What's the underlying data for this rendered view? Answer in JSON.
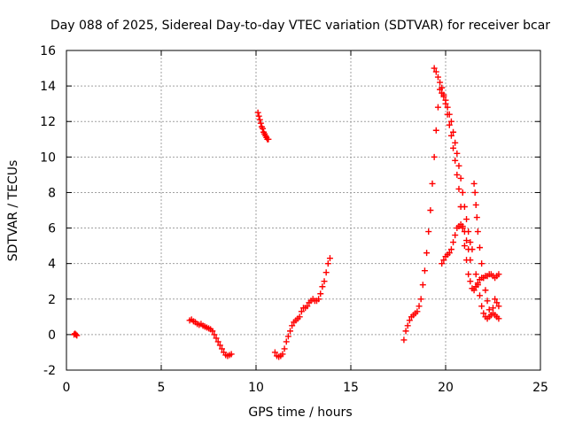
{
  "chart_data": {
    "type": "scatter",
    "title": "Day 088 of 2025, Sidereal Day-to-day VTEC variation (SDTVAR) for receiver bcar",
    "xlabel": "GPS time / hours",
    "ylabel": "SDTVAR / TECUs",
    "xlim": [
      0,
      25
    ],
    "ylim": [
      -2,
      16
    ],
    "xticks": [
      0,
      5,
      10,
      15,
      20,
      25
    ],
    "yticks": [
      -2,
      0,
      2,
      4,
      6,
      8,
      10,
      12,
      14,
      16
    ],
    "grid": true,
    "marker": "+",
    "color": "#ff0000",
    "series": [
      {
        "name": "seg1",
        "x": [
          0.4,
          0.45,
          0.5,
          0.55
        ],
        "y": [
          0.0,
          0.05,
          0.0,
          -0.05
        ]
      },
      {
        "name": "seg2",
        "x": [
          6.5,
          6.6,
          6.7,
          6.8,
          6.9,
          7.0,
          7.1,
          7.2,
          7.3,
          7.4,
          7.5,
          7.6,
          7.7,
          7.8,
          7.9,
          8.0,
          8.1,
          8.2,
          8.3,
          8.4,
          8.5,
          8.6,
          8.7
        ],
        "y": [
          0.8,
          0.85,
          0.75,
          0.7,
          0.6,
          0.55,
          0.6,
          0.5,
          0.45,
          0.4,
          0.35,
          0.3,
          0.2,
          0.0,
          -0.2,
          -0.4,
          -0.6,
          -0.8,
          -1.0,
          -1.15,
          -1.2,
          -1.15,
          -1.1
        ]
      },
      {
        "name": "seg3",
        "x": [
          10.1,
          10.15,
          10.2,
          10.25,
          10.3,
          10.35,
          10.4,
          10.45,
          10.5,
          10.55,
          10.6,
          10.65
        ],
        "y": [
          12.5,
          12.3,
          12.1,
          11.9,
          11.7,
          11.6,
          11.4,
          11.3,
          11.2,
          11.1,
          11.0,
          11.0
        ]
      },
      {
        "name": "seg4",
        "x": [
          11.0,
          11.1,
          11.2,
          11.3,
          11.4,
          11.5,
          11.6,
          11.7,
          11.8,
          11.9,
          12.0,
          12.1,
          12.2,
          12.3,
          12.4,
          12.5,
          12.6,
          12.7,
          12.8,
          12.9,
          13.0,
          13.1,
          13.2,
          13.3,
          13.4,
          13.5,
          13.6,
          13.7,
          13.8,
          13.9
        ],
        "y": [
          -1.0,
          -1.2,
          -1.25,
          -1.2,
          -1.1,
          -0.8,
          -0.4,
          -0.1,
          0.2,
          0.5,
          0.7,
          0.8,
          0.9,
          1.0,
          1.3,
          1.5,
          1.5,
          1.6,
          1.8,
          1.9,
          2.0,
          1.9,
          1.9,
          2.0,
          2.3,
          2.7,
          3.0,
          3.5,
          4.0,
          4.3
        ]
      },
      {
        "name": "seg5",
        "x": [
          17.8,
          17.9,
          18.0,
          18.1,
          18.2,
          18.3,
          18.4,
          18.5,
          18.6,
          18.7,
          18.8,
          18.9,
          19.0,
          19.1,
          19.2,
          19.3,
          19.4,
          19.5,
          19.6,
          19.7,
          19.8,
          19.9,
          20.0,
          20.1,
          20.2,
          20.3,
          20.4,
          20.5,
          20.6,
          20.7,
          20.8,
          20.9,
          21.0,
          21.1,
          21.2,
          21.3,
          21.4,
          21.5,
          21.6,
          21.7,
          21.8,
          21.9,
          22.0,
          22.1,
          22.2,
          22.3,
          22.4,
          22.5,
          22.6,
          22.7,
          22.8
        ],
        "y": [
          -0.3,
          0.2,
          0.5,
          0.8,
          1.0,
          1.1,
          1.2,
          1.3,
          1.6,
          2.0,
          2.8,
          3.6,
          4.6,
          5.8,
          7.0,
          8.5,
          10.0,
          11.5,
          12.8,
          13.8,
          13.6,
          13.4,
          13.0,
          12.4,
          11.8,
          11.2,
          10.5,
          9.8,
          9.0,
          8.2,
          7.2,
          6.0,
          5.0,
          4.2,
          3.4,
          3.0,
          2.6,
          2.5,
          2.7,
          2.9,
          3.1,
          3.2,
          3.2,
          3.3,
          3.3,
          3.4,
          3.4,
          3.3,
          3.2,
          3.3,
          3.4
        ]
      },
      {
        "name": "seg6",
        "x": [
          19.4,
          19.5,
          19.6,
          19.7,
          19.8,
          19.9,
          20.0,
          20.1,
          20.2,
          20.3,
          20.4,
          20.5,
          20.6,
          20.7,
          20.8,
          20.9,
          21.0,
          21.1,
          21.2,
          21.3,
          21.4
        ],
        "y": [
          15.0,
          14.8,
          14.5,
          14.2,
          13.9,
          13.5,
          13.2,
          12.8,
          12.4,
          12.0,
          11.4,
          10.8,
          10.2,
          9.5,
          8.8,
          8.0,
          7.2,
          6.5,
          5.8,
          5.2,
          4.8
        ]
      },
      {
        "name": "seg7",
        "x": [
          19.8,
          19.9,
          20.0,
          20.1,
          20.2,
          20.3,
          20.4,
          20.5,
          20.6,
          20.7,
          20.8,
          20.9,
          21.0,
          21.1,
          21.2,
          21.3
        ],
        "y": [
          4.0,
          4.2,
          4.4,
          4.5,
          4.6,
          4.8,
          5.2,
          5.6,
          6.0,
          6.1,
          6.2,
          6.1,
          5.8,
          5.3,
          4.8,
          4.2
        ]
      },
      {
        "name": "seg8",
        "x": [
          21.5,
          21.55,
          21.6,
          21.65,
          21.7,
          21.8,
          21.9,
          22.0,
          22.1,
          22.2,
          22.3,
          22.4,
          22.5,
          22.6,
          22.7,
          22.8
        ],
        "y": [
          8.5,
          8.0,
          7.3,
          6.6,
          5.8,
          4.9,
          4.0,
          3.2,
          2.5,
          1.9,
          1.4,
          1.1,
          1.5,
          2.0,
          1.8,
          1.6
        ]
      },
      {
        "name": "seg9",
        "x": [
          21.6,
          21.7,
          21.8,
          21.9,
          22.0,
          22.1,
          22.2,
          22.3,
          22.4,
          22.5,
          22.6,
          22.7,
          22.8
        ],
        "y": [
          3.4,
          2.8,
          2.2,
          1.6,
          1.2,
          1.0,
          0.9,
          1.0,
          1.1,
          1.2,
          1.1,
          1.0,
          0.9
        ]
      }
    ]
  }
}
